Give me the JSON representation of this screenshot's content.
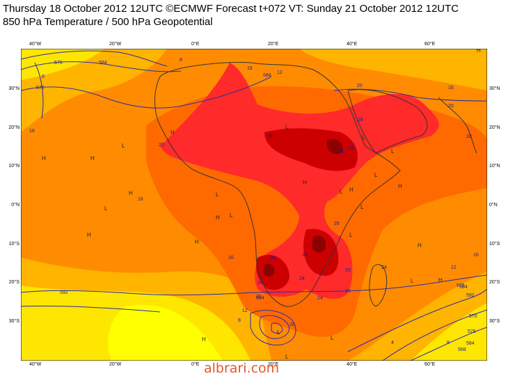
{
  "header": {
    "title": "Thursday 18 October 2012 12UTC ©ECMWF Forecast t+072 VT: Sunday 21 October 2012 12UTC",
    "subtitle": "850 hPa Temperature / 500 hPa Geopotential"
  },
  "axes": {
    "lon_labels": [
      "40°W",
      "20°W",
      "0°E",
      "20°E",
      "40°E",
      "60°E"
    ],
    "lat_labels": [
      "30°N",
      "20°N",
      "10°N",
      "0°N",
      "10°S",
      "20°S",
      "30°S"
    ]
  },
  "contour_labels": [
    "576",
    "584",
    "8",
    "576",
    "16",
    "16",
    "12",
    "8",
    "584",
    "20",
    "16",
    "20",
    "16",
    "20",
    "20",
    "28",
    "24",
    "24",
    "28",
    "16",
    "24",
    "28",
    "24",
    "28",
    "20",
    "24",
    "20",
    "24",
    "28",
    "12",
    "8",
    "16",
    "12",
    "592",
    "584",
    "576",
    "16",
    "584",
    "570",
    "584",
    "576",
    "4",
    "568",
    "8",
    "592"
  ],
  "pressure_marks": [
    "H",
    "H",
    "L",
    "H",
    "L",
    "H",
    "L",
    "H",
    "H",
    "H",
    "L",
    "H",
    "L",
    "L",
    "L",
    "H",
    "L",
    "L",
    "H",
    "H",
    "L",
    "L",
    "H",
    "L",
    "H",
    "L",
    "H",
    "L",
    "H",
    "L"
  ],
  "colors": {
    "yellow": "#ffff00",
    "light_yellow": "#ffe600",
    "light_orange": "#ffb400",
    "orange": "#ff8c00",
    "dark_orange": "#ff6a00",
    "red": "#ff2a2a",
    "dark_red": "#cc0000",
    "deep_red": "#8b0000",
    "contour": "#2a2aa8",
    "watermark": "#e4572e"
  },
  "watermark": "albrari.com"
}
